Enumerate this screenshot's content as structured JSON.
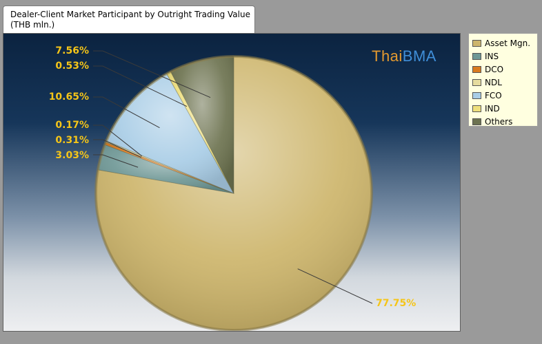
{
  "title_lines": [
    "Dealer-Client Market Participant by Outright Trading Value",
    "(THB mln.)"
  ],
  "brand": {
    "part1": "Thai",
    "part2": "BMA",
    "color1": "#e59a2f",
    "color2": "#3f8ed8"
  },
  "chart_data": {
    "type": "pie",
    "title": "Dealer-Client Market Participant by Outright Trading Value (THB mln.)",
    "categories": [
      "Asset Mgn.",
      "INS",
      "DCO",
      "NDL",
      "FCO",
      "IND",
      "Others"
    ],
    "values": [
      77.75,
      3.03,
      0.31,
      0.17,
      10.65,
      0.53,
      7.56
    ],
    "labels": [
      "77.75%",
      "3.03%",
      "0.31%",
      "0.17%",
      "10.65%",
      "0.53%",
      "7.56%"
    ],
    "colors": [
      "#cdb56b",
      "#6e9795",
      "#d97a1e",
      "#e6dc9e",
      "#a9cde6",
      "#eedf7c",
      "#6d7350"
    ],
    "start_angle_deg": 0,
    "direction": "clockwise",
    "legend_position": "right"
  },
  "legend": {
    "items": [
      {
        "label": "Asset Mgn.",
        "color": "#cdb56b"
      },
      {
        "label": "INS",
        "color": "#6e9795"
      },
      {
        "label": "DCO",
        "color": "#d97a1e"
      },
      {
        "label": "NDL",
        "color": "#e6dc9e"
      },
      {
        "label": "FCO",
        "color": "#a9cde6"
      },
      {
        "label": "IND",
        "color": "#eedf7c"
      },
      {
        "label": "Others",
        "color": "#6d7350"
      }
    ]
  }
}
